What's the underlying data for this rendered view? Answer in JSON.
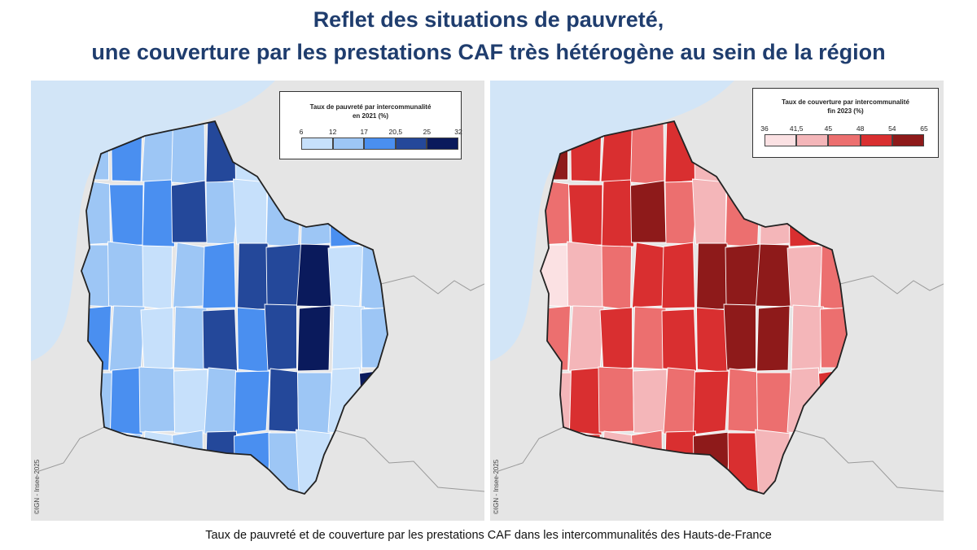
{
  "title_line1": "Reflet des situations de pauvreté,",
  "title_line2": "une couverture par les prestations CAF très hétérogène au sein de la région",
  "caption": "Taux de pauvreté et de couverture par les prestations CAF dans les intercommunalités des Hauts-de-France",
  "maps": [
    {
      "name": "poverty-map",
      "legend_title_line1": "Taux de pauvreté par intercommunalité",
      "legend_title_line2": "en 2021 (%)",
      "breaks": [
        "6",
        "12",
        "17",
        "20,5",
        "25",
        "32"
      ],
      "colors": [
        "#c6e0fb",
        "#9dc6f5",
        "#4a8ff0",
        "#24489a",
        "#0a1a5c"
      ],
      "credit": "©IGN - Insee-2025"
    },
    {
      "name": "caf-coverage-map",
      "legend_title_line1": "Taux de couverture par intercommunalité",
      "legend_title_line2": "fin 2023  (%)",
      "breaks": [
        "36",
        "41,5",
        "45",
        "48",
        "54",
        "65"
      ],
      "colors": [
        "#fbe1e3",
        "#f4b6b9",
        "#ec6f6f",
        "#d92f30",
        "#8e1a1a"
      ],
      "credit": "©IGN - Insee-2025"
    }
  ],
  "sea_color": "#d2e5f7",
  "land_outside_color": "#e5e5e5"
}
